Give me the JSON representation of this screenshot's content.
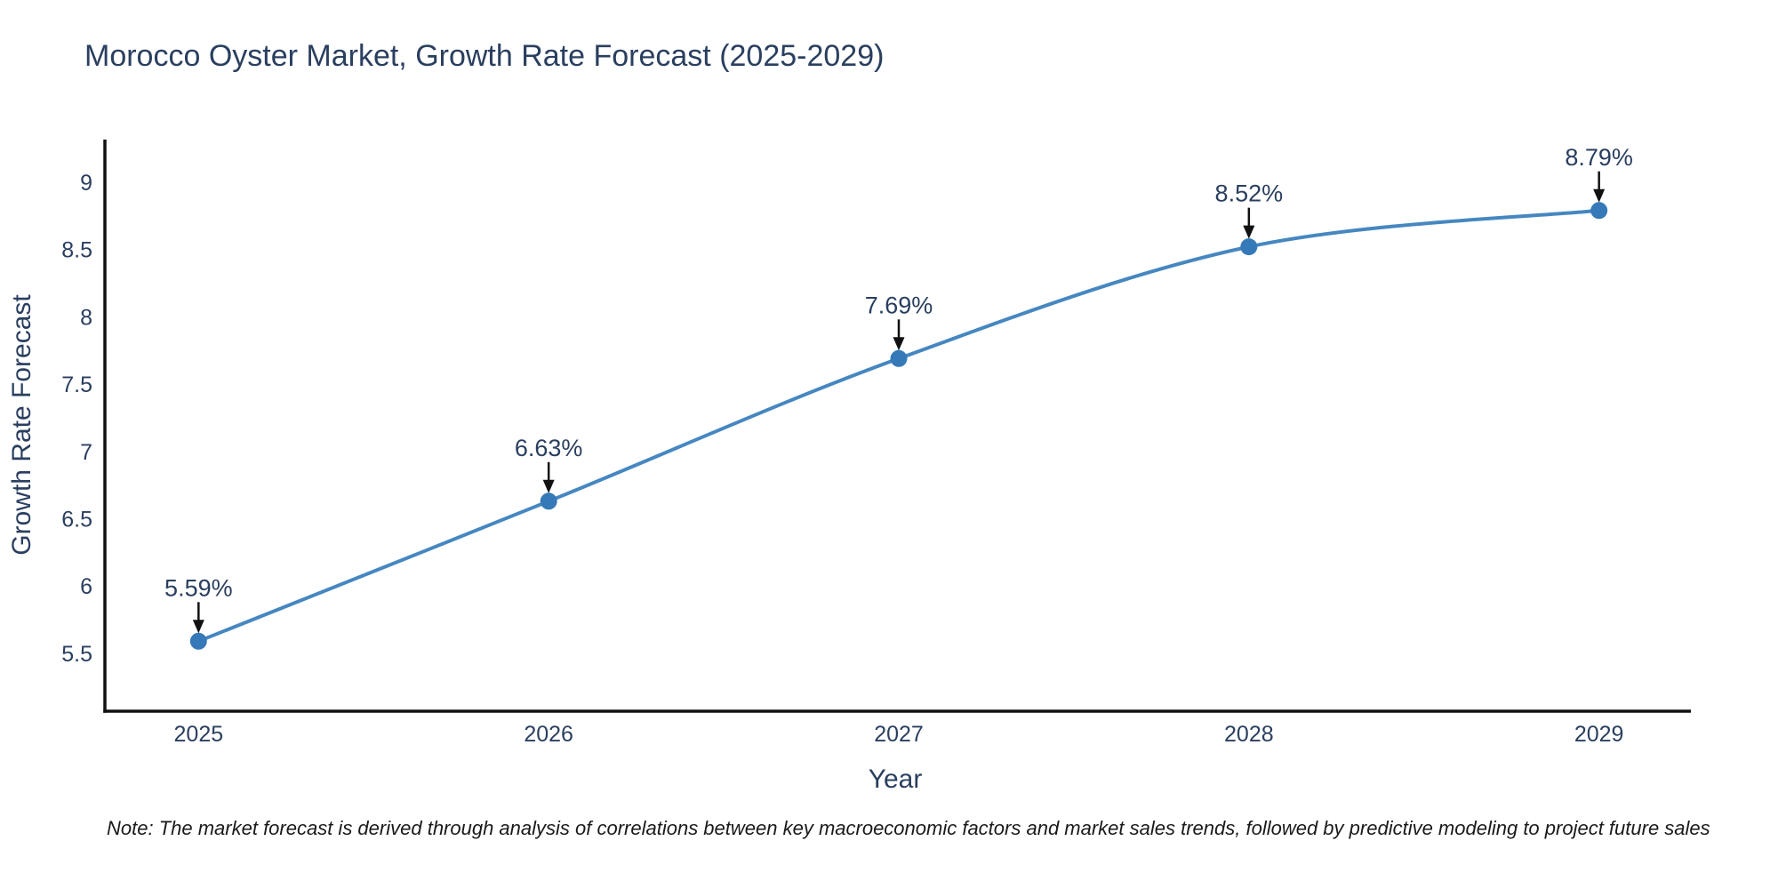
{
  "chart_data": {
    "type": "line",
    "title": "Morocco Oyster Market, Growth Rate Forecast (2025-2029)",
    "xlabel": "Year",
    "ylabel": "Growth Rate Forecast",
    "x": [
      2025,
      2026,
      2027,
      2028,
      2029
    ],
    "series": [
      {
        "name": "Growth Rate Forecast",
        "values": [
          5.59,
          6.63,
          7.69,
          8.52,
          8.79
        ]
      }
    ],
    "point_labels": [
      "5.59%",
      "6.63%",
      "7.69%",
      "8.52%",
      "8.79%"
    ],
    "yticks": [
      5.5,
      6,
      6.5,
      7,
      7.5,
      8,
      8.5,
      9
    ],
    "xlim": [
      2024.73,
      2029.27
    ],
    "ylim": [
      5.07,
      9.33
    ],
    "grid": false,
    "legend": "none",
    "line_shape": "spline",
    "annotation_style": "down-arrow",
    "colors": {
      "line": "#4687c0",
      "marker": "#3579b8",
      "axis": "#111111",
      "arrow": "#111111",
      "text": "#2a3f5f",
      "note": "#1a1a1a",
      "background": "#ffffff"
    }
  },
  "note": {
    "text": "Note: The market forecast is derived through analysis of correlations between key macroeconomic factors and market sales trends, followed by predictive modeling to project future sales"
  }
}
